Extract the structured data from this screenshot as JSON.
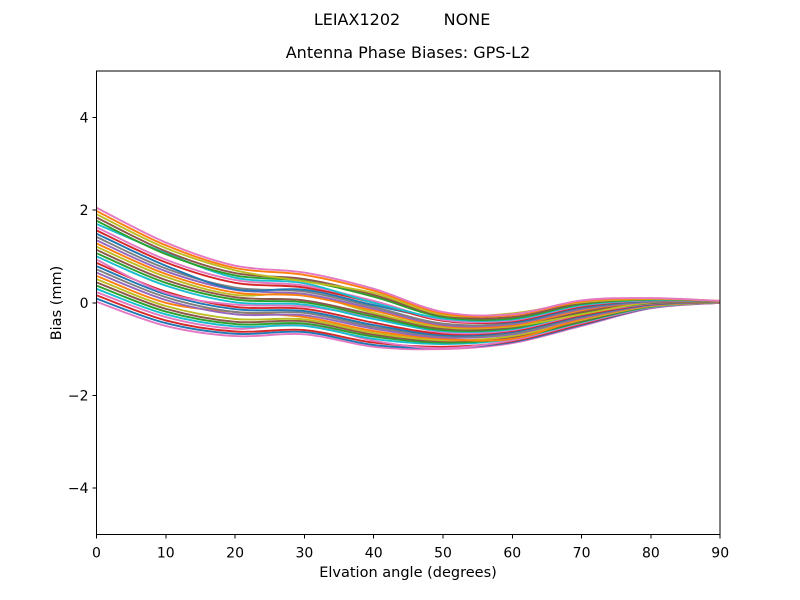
{
  "header": {
    "station": "LEIAX1202",
    "radome": "NONE"
  },
  "chart_data": {
    "type": "line",
    "title": "Antenna Phase Biases: GPS-L2",
    "xlabel": "Elvation angle (degrees)",
    "ylabel": "Bias (mm)",
    "xlim": [
      0,
      90
    ],
    "ylim": [
      -5,
      5
    ],
    "xticks": [
      0,
      10,
      20,
      30,
      40,
      50,
      60,
      70,
      80,
      90
    ],
    "xticklabels": [
      "0",
      "10",
      "20",
      "30",
      "40",
      "50",
      "60",
      "70",
      "80",
      "90"
    ],
    "yticks": [
      -4,
      -2,
      0,
      2,
      4
    ],
    "yticklabels": [
      "−4",
      "−2",
      "0",
      "2",
      "4"
    ],
    "grid": false,
    "legend": false,
    "x": [
      0,
      10,
      20,
      30,
      40,
      50,
      60,
      70,
      80,
      90
    ],
    "envelope": {
      "top": [
        2.05,
        1.3,
        0.8,
        0.65,
        0.3,
        -0.2,
        -0.25,
        0.05,
        0.1,
        0.04
      ],
      "bottom": [
        0.02,
        -0.5,
        -0.72,
        -0.68,
        -0.95,
        -1.0,
        -0.87,
        -0.5,
        -0.12,
        0.0
      ]
    },
    "palette": [
      "#1f77b4",
      "#ff7f0e",
      "#2ca02c",
      "#d62728",
      "#9467bd",
      "#8c564b",
      "#e377c2",
      "#7f7f7f",
      "#bcbd22",
      "#17becf"
    ],
    "series": [
      {
        "color": "#e377c2",
        "y": [
          0.02,
          -0.5,
          -0.72,
          -0.68,
          -0.95,
          -1.0,
          -0.87,
          -0.5,
          -0.12,
          0.0
        ]
      },
      {
        "color": "#1f77b4",
        "y": [
          0.09,
          -0.44,
          -0.67,
          -0.63,
          -0.91,
          -0.97,
          -0.85,
          -0.48,
          -0.11,
          0.0
        ]
      },
      {
        "color": "#d62728",
        "y": [
          0.16,
          -0.38,
          -0.62,
          -0.59,
          -0.86,
          -0.95,
          -0.83,
          -0.46,
          -0.1,
          0.0
        ]
      },
      {
        "color": "#e377c2",
        "y": [
          0.23,
          -0.31,
          -0.56,
          -0.46,
          -0.82,
          -0.98,
          -0.81,
          -0.44,
          -0.1,
          0.0
        ]
      },
      {
        "color": "#17becf",
        "y": [
          0.3,
          -0.25,
          -0.51,
          -0.5,
          -0.78,
          -0.89,
          -0.78,
          -0.42,
          -0.09,
          0.01
        ]
      },
      {
        "color": "#2ca02c",
        "y": [
          0.37,
          -0.19,
          -0.46,
          -0.45,
          -0.73,
          -0.86,
          -0.76,
          -0.41,
          -0.08,
          0.01
        ]
      },
      {
        "color": "#8c564b",
        "y": [
          0.44,
          -0.13,
          -0.41,
          -0.4,
          -0.69,
          -0.83,
          -0.74,
          -0.39,
          -0.07,
          0.01
        ]
      },
      {
        "color": "#bcbd22",
        "y": [
          0.51,
          -0.07,
          -0.35,
          -0.36,
          -0.65,
          -0.81,
          -0.72,
          -0.37,
          -0.07,
          0.01
        ]
      },
      {
        "color": "#ff7f0e",
        "y": [
          0.58,
          0.0,
          -0.2,
          -0.31,
          -0.61,
          -0.78,
          -0.78,
          -0.35,
          -0.06,
          0.01
        ]
      },
      {
        "color": "#9467bd",
        "y": [
          0.65,
          0.06,
          -0.25,
          -0.27,
          -0.56,
          -0.75,
          -0.68,
          -0.33,
          -0.05,
          0.01
        ]
      },
      {
        "color": "#7f7f7f",
        "y": [
          0.72,
          0.12,
          -0.2,
          -0.22,
          -0.52,
          -0.72,
          -0.66,
          -0.31,
          -0.04,
          0.01
        ]
      },
      {
        "color": "#1f77b4",
        "y": [
          0.79,
          0.18,
          -0.14,
          -0.18,
          -0.48,
          -0.7,
          -0.63,
          -0.29,
          -0.04,
          0.02
        ]
      },
      {
        "color": "#d62728",
        "y": [
          0.86,
          0.24,
          -0.09,
          -0.13,
          -0.43,
          -0.67,
          -0.61,
          -0.27,
          -0.03,
          0.02
        ]
      },
      {
        "color": "#e377c2",
        "y": [
          0.93,
          0.21,
          -0.04,
          -0.08,
          -0.31,
          -0.64,
          -0.59,
          -0.25,
          -0.02,
          0.02
        ]
      },
      {
        "color": "#17becf",
        "y": [
          1.0,
          0.37,
          0.01,
          -0.04,
          -0.35,
          -0.61,
          -0.57,
          -0.23,
          -0.01,
          0.02
        ]
      },
      {
        "color": "#2ca02c",
        "y": [
          1.07,
          0.43,
          0.07,
          0.01,
          -0.3,
          -0.59,
          -0.55,
          -0.22,
          -0.01,
          0.02
        ]
      },
      {
        "color": "#8c564b",
        "y": [
          1.14,
          0.49,
          0.12,
          0.05,
          -0.26,
          -0.56,
          -0.53,
          -0.2,
          0.0,
          0.02
        ]
      },
      {
        "color": "#bcbd22",
        "y": [
          1.21,
          0.56,
          0.17,
          0.19,
          -0.22,
          -0.53,
          -0.51,
          -0.25,
          0.01,
          0.02
        ]
      },
      {
        "color": "#ff7f0e",
        "y": [
          1.28,
          0.62,
          0.22,
          0.15,
          -0.17,
          -0.5,
          -0.49,
          -0.16,
          0.02,
          0.02
        ]
      },
      {
        "color": "#9467bd",
        "y": [
          1.35,
          0.68,
          0.28,
          0.19,
          -0.13,
          -0.48,
          -0.46,
          -0.14,
          0.02,
          0.03
        ]
      },
      {
        "color": "#7f7f7f",
        "y": [
          1.42,
          0.74,
          0.33,
          0.24,
          -0.09,
          -0.45,
          -0.44,
          -0.12,
          0.03,
          0.03
        ]
      },
      {
        "color": "#1f77b4",
        "y": [
          1.49,
          0.8,
          0.29,
          0.28,
          -0.05,
          -0.35,
          -0.42,
          -0.1,
          0.04,
          0.03
        ]
      },
      {
        "color": "#d62728",
        "y": [
          1.56,
          0.87,
          0.43,
          0.33,
          0.0,
          -0.39,
          -0.4,
          -0.08,
          0.05,
          0.03
        ]
      },
      {
        "color": "#e377c2",
        "y": [
          1.63,
          0.93,
          0.49,
          0.37,
          0.04,
          -0.37,
          -0.38,
          -0.06,
          0.05,
          0.03
        ]
      },
      {
        "color": "#17becf",
        "y": [
          1.7,
          1.07,
          0.54,
          0.42,
          0.0,
          -0.34,
          -0.36,
          -0.05,
          0.06,
          0.03
        ]
      },
      {
        "color": "#2ca02c",
        "y": [
          1.77,
          1.05,
          0.59,
          0.47,
          0.13,
          -0.31,
          -0.34,
          -0.03,
          0.07,
          0.03
        ]
      },
      {
        "color": "#8c564b",
        "y": [
          1.84,
          1.11,
          0.64,
          0.51,
          0.17,
          -0.28,
          -0.31,
          -0.01,
          0.08,
          0.03
        ]
      },
      {
        "color": "#bcbd22",
        "y": [
          1.91,
          1.18,
          0.7,
          0.46,
          0.21,
          -0.26,
          -0.23,
          0.01,
          0.08,
          0.04
        ]
      },
      {
        "color": "#ff7f0e",
        "y": [
          1.98,
          1.24,
          0.75,
          0.6,
          0.26,
          -0.23,
          -0.27,
          0.03,
          0.09,
          0.04
        ]
      },
      {
        "color": "#e377c2",
        "y": [
          2.05,
          1.3,
          0.8,
          0.65,
          0.3,
          -0.2,
          -0.25,
          0.05,
          0.1,
          0.04
        ]
      }
    ]
  }
}
